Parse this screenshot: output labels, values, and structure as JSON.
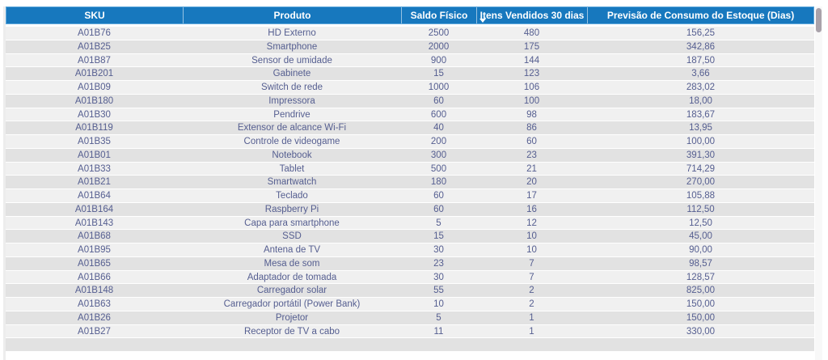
{
  "chart_data": {
    "type": "table",
    "columns": [
      "SKU",
      "Produto",
      "Saldo Físico",
      "Itens Vendidos 30 dias",
      "Previsão de Consumo do Estoque (Dias)"
    ],
    "sorted_column": "Itens Vendidos 30 dias",
    "sort_direction": "descending",
    "rows": [
      [
        "A01B76",
        "HD Externo",
        "2500",
        "480",
        "156,25"
      ],
      [
        "A01B25",
        "Smartphone",
        "2000",
        "175",
        "342,86"
      ],
      [
        "A01B87",
        "Sensor de umidade",
        "900",
        "144",
        "187,50"
      ],
      [
        "A01B201",
        "Gabinete",
        "15",
        "123",
        "3,66"
      ],
      [
        "A01B09",
        "Switch de rede",
        "1000",
        "106",
        "283,02"
      ],
      [
        "A01B180",
        "Impressora",
        "60",
        "100",
        "18,00"
      ],
      [
        "A01B30",
        "Pendrive",
        "600",
        "98",
        "183,67"
      ],
      [
        "A01B119",
        "Extensor de alcance Wi-Fi",
        "40",
        "86",
        "13,95"
      ],
      [
        "A01B35",
        "Controle de videogame",
        "200",
        "60",
        "100,00"
      ],
      [
        "A01B01",
        "Notebook",
        "300",
        "23",
        "391,30"
      ],
      [
        "A01B33",
        "Tablet",
        "500",
        "21",
        "714,29"
      ],
      [
        "A01B21",
        "Smartwatch",
        "180",
        "20",
        "270,00"
      ],
      [
        "A01B64",
        "Teclado",
        "60",
        "17",
        "105,88"
      ],
      [
        "A01B164",
        "Raspberry Pi",
        "60",
        "16",
        "112,50"
      ],
      [
        "A01B143",
        "Capa para smartphone",
        "5",
        "12",
        "12,50"
      ],
      [
        "A01B68",
        "SSD",
        "15",
        "10",
        "45,00"
      ],
      [
        "A01B95",
        "Antena de TV",
        "30",
        "10",
        "90,00"
      ],
      [
        "A01B65",
        "Mesa de som",
        "23",
        "7",
        "98,57"
      ],
      [
        "A01B66",
        "Adaptador de tomada",
        "30",
        "7",
        "128,57"
      ],
      [
        "A01B148",
        "Carregador solar",
        "55",
        "2",
        "825,00"
      ],
      [
        "A01B63",
        "Carregador portátil (Power Bank)",
        "10",
        "2",
        "150,00"
      ],
      [
        "A01B26",
        "Projetor",
        "5",
        "1",
        "150,00"
      ],
      [
        "A01B27",
        "Receptor de TV a cabo",
        "11",
        "1",
        "330,00"
      ]
    ],
    "partial_row": [
      "",
      "",
      "",
      "",
      ""
    ]
  },
  "colors": {
    "header_background": "#1778BE",
    "header_border": "#61A9DC",
    "header_text": "#FFFFFF",
    "row_text": "#555E90",
    "row_stripe_light": "#F0F0F0",
    "row_stripe_dark": "#E2E2E2",
    "row_separator": "#FFFFFF",
    "scrollbar_thumb": "#A9A2AA"
  },
  "icons": {
    "sort_descending": "▼"
  }
}
